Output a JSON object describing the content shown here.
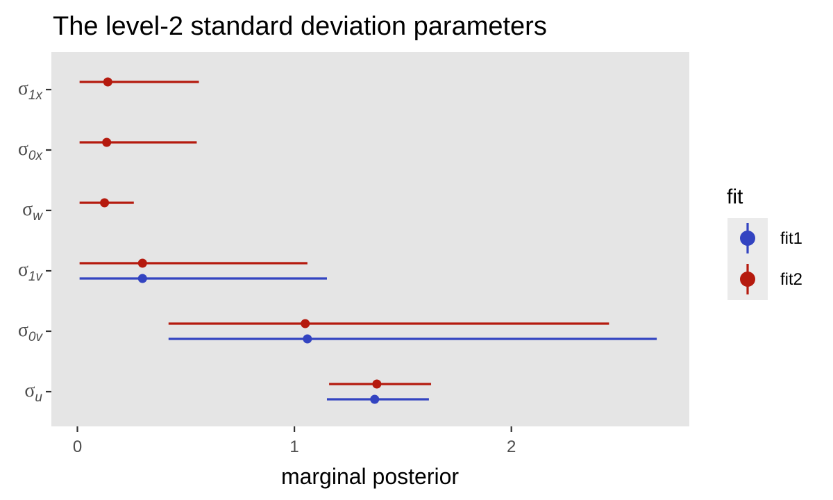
{
  "chart_data": {
    "type": "pointrange",
    "title": "The level-2 standard deviation parameters",
    "xlabel": "marginal posterior",
    "ylabel": "",
    "xlim": [
      -0.12,
      2.82
    ],
    "xticks": [
      0,
      1,
      2
    ],
    "xtick_labels": [
      "0",
      "1",
      "2"
    ],
    "grid": false,
    "legend": {
      "title": "fit",
      "position": "right"
    },
    "parameters": [
      {
        "symbol": "σ",
        "subscript": "1x"
      },
      {
        "symbol": "σ",
        "subscript": "0x"
      },
      {
        "symbol": "σ",
        "subscript": "w"
      },
      {
        "symbol": "σ",
        "subscript": "1v"
      },
      {
        "symbol": "σ",
        "subscript": "0v"
      },
      {
        "symbol": "σ",
        "subscript": "u"
      }
    ],
    "series": [
      {
        "name": "fit1",
        "color": "#3344c1",
        "points": [
          {
            "param": 3,
            "x": 0.3,
            "low": 0.01,
            "high": 1.15
          },
          {
            "param": 4,
            "x": 1.06,
            "low": 0.42,
            "high": 2.67
          },
          {
            "param": 5,
            "x": 1.37,
            "low": 1.15,
            "high": 1.62
          }
        ]
      },
      {
        "name": "fit2",
        "color": "#b51a0e",
        "points": [
          {
            "param": 0,
            "x": 0.14,
            "low": 0.01,
            "high": 0.56
          },
          {
            "param": 1,
            "x": 0.135,
            "low": 0.01,
            "high": 0.55
          },
          {
            "param": 2,
            "x": 0.125,
            "low": 0.01,
            "high": 0.26
          },
          {
            "param": 3,
            "x": 0.3,
            "low": 0.01,
            "high": 1.06
          },
          {
            "param": 4,
            "x": 1.05,
            "low": 0.42,
            "high": 2.45
          },
          {
            "param": 5,
            "x": 1.38,
            "low": 1.16,
            "high": 1.63
          }
        ]
      }
    ]
  }
}
